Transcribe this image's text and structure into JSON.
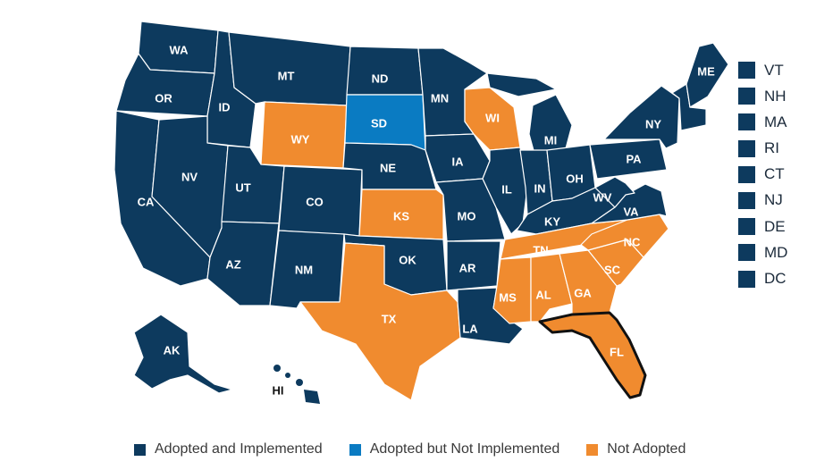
{
  "colors": {
    "adopted_implemented": "#0d3a5e",
    "adopted_not_implemented": "#0a7bc2",
    "not_adopted": "#f08b2f",
    "border": "#ffffff",
    "highlight_outline": "#111111"
  },
  "map": {
    "states": [
      {
        "abbr": "WA",
        "status": "adopted_implemented"
      },
      {
        "abbr": "OR",
        "status": "adopted_implemented"
      },
      {
        "abbr": "CA",
        "status": "adopted_implemented"
      },
      {
        "abbr": "ID",
        "status": "adopted_implemented"
      },
      {
        "abbr": "NV",
        "status": "adopted_implemented"
      },
      {
        "abbr": "MT",
        "status": "adopted_implemented"
      },
      {
        "abbr": "WY",
        "status": "not_adopted"
      },
      {
        "abbr": "UT",
        "status": "adopted_implemented"
      },
      {
        "abbr": "AZ",
        "status": "adopted_implemented"
      },
      {
        "abbr": "CO",
        "status": "adopted_implemented"
      },
      {
        "abbr": "NM",
        "status": "adopted_implemented"
      },
      {
        "abbr": "ND",
        "status": "adopted_implemented"
      },
      {
        "abbr": "SD",
        "status": "adopted_not_implemented"
      },
      {
        "abbr": "NE",
        "status": "adopted_implemented"
      },
      {
        "abbr": "KS",
        "status": "not_adopted"
      },
      {
        "abbr": "OK",
        "status": "adopted_implemented"
      },
      {
        "abbr": "TX",
        "status": "not_adopted"
      },
      {
        "abbr": "MN",
        "status": "adopted_implemented"
      },
      {
        "abbr": "IA",
        "status": "adopted_implemented"
      },
      {
        "abbr": "MO",
        "status": "adopted_implemented"
      },
      {
        "abbr": "AR",
        "status": "adopted_implemented"
      },
      {
        "abbr": "LA",
        "status": "adopted_implemented"
      },
      {
        "abbr": "WI",
        "status": "not_adopted"
      },
      {
        "abbr": "IL",
        "status": "adopted_implemented"
      },
      {
        "abbr": "MI",
        "status": "adopted_implemented"
      },
      {
        "abbr": "IN",
        "status": "adopted_implemented"
      },
      {
        "abbr": "OH",
        "status": "adopted_implemented"
      },
      {
        "abbr": "KY",
        "status": "adopted_implemented"
      },
      {
        "abbr": "TN",
        "status": "not_adopted"
      },
      {
        "abbr": "MS",
        "status": "not_adopted"
      },
      {
        "abbr": "AL",
        "status": "not_adopted"
      },
      {
        "abbr": "GA",
        "status": "not_adopted"
      },
      {
        "abbr": "FL",
        "status": "not_adopted",
        "highlighted": true
      },
      {
        "abbr": "SC",
        "status": "not_adopted"
      },
      {
        "abbr": "NC",
        "status": "not_adopted"
      },
      {
        "abbr": "VA",
        "status": "adopted_implemented"
      },
      {
        "abbr": "WV",
        "status": "adopted_implemented"
      },
      {
        "abbr": "PA",
        "status": "adopted_implemented"
      },
      {
        "abbr": "NY",
        "status": "adopted_implemented"
      },
      {
        "abbr": "ME",
        "status": "adopted_implemented"
      },
      {
        "abbr": "AK",
        "status": "adopted_implemented"
      },
      {
        "abbr": "HI",
        "status": "adopted_implemented"
      }
    ],
    "small_states": [
      {
        "abbr": "VT",
        "status": "adopted_implemented"
      },
      {
        "abbr": "NH",
        "status": "adopted_implemented"
      },
      {
        "abbr": "MA",
        "status": "adopted_implemented"
      },
      {
        "abbr": "RI",
        "status": "adopted_implemented"
      },
      {
        "abbr": "CT",
        "status": "adopted_implemented"
      },
      {
        "abbr": "NJ",
        "status": "adopted_implemented"
      },
      {
        "abbr": "DE",
        "status": "adopted_implemented"
      },
      {
        "abbr": "MD",
        "status": "adopted_implemented"
      },
      {
        "abbr": "DC",
        "status": "adopted_implemented"
      }
    ]
  },
  "legend": {
    "items": [
      {
        "label": "Adopted and Implemented",
        "status": "adopted_implemented"
      },
      {
        "label": "Adopted but Not Implemented",
        "status": "adopted_not_implemented"
      },
      {
        "label": "Not Adopted",
        "status": "not_adopted"
      }
    ]
  }
}
